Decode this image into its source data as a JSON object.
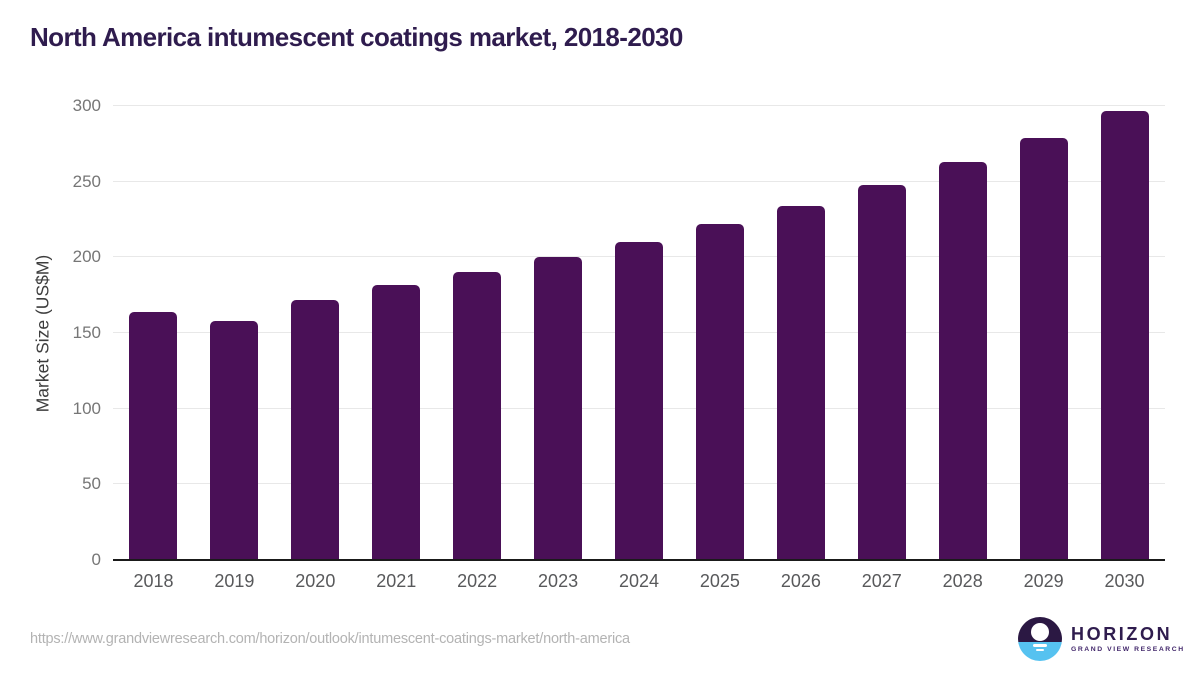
{
  "header": {
    "title": "North America intumescent coatings market, 2018-2030"
  },
  "chart_data": {
    "type": "bar",
    "title": "North America intumescent coatings market, 2018-2030",
    "categories": [
      "2018",
      "2019",
      "2020",
      "2021",
      "2022",
      "2023",
      "2024",
      "2025",
      "2026",
      "2027",
      "2028",
      "2029",
      "2030"
    ],
    "values": [
      164,
      158,
      172,
      182,
      190,
      200,
      210,
      222,
      234,
      248,
      263,
      279,
      297
    ],
    "xlabel": "",
    "ylabel": "Market Size (US$M)",
    "ylim": [
      0,
      300
    ],
    "yticks": [
      0,
      50,
      100,
      150,
      200,
      250,
      300
    ],
    "grid": true,
    "legend": "none"
  },
  "colors": {
    "bar": "#4a1057",
    "title": "#2f1c4e",
    "gridline": "#e8e8e8",
    "axis_line": "#1a1a1a",
    "y_tick_text": "#767676",
    "x_tick_text": "#58595b",
    "logo_navy": "#2b1843",
    "logo_blue": "#56c2f0"
  },
  "footer": {
    "source_url": "https://www.grandviewresearch.com/horizon/outlook/intumescent-coatings-market/north-america",
    "logo": {
      "name": "HORIZON",
      "subtext": "GRAND VIEW RESEARCH"
    }
  }
}
